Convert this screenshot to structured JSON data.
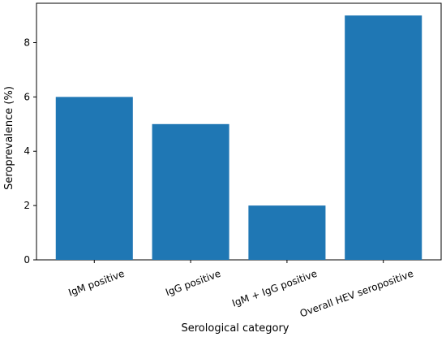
{
  "chart_data": {
    "type": "bar",
    "title": "",
    "xlabel": "Serological category",
    "ylabel": "Seroprevalence (%)",
    "categories": [
      "IgM positive",
      "IgG positive",
      "IgM + IgG positive",
      "Overall HEV seropositive"
    ],
    "values": [
      6,
      5,
      2,
      9
    ],
    "ylim": [
      0,
      9.45
    ],
    "yticks": [
      0,
      2,
      4,
      6,
      8
    ],
    "grid": false,
    "bar_color": "#1f77b4"
  }
}
